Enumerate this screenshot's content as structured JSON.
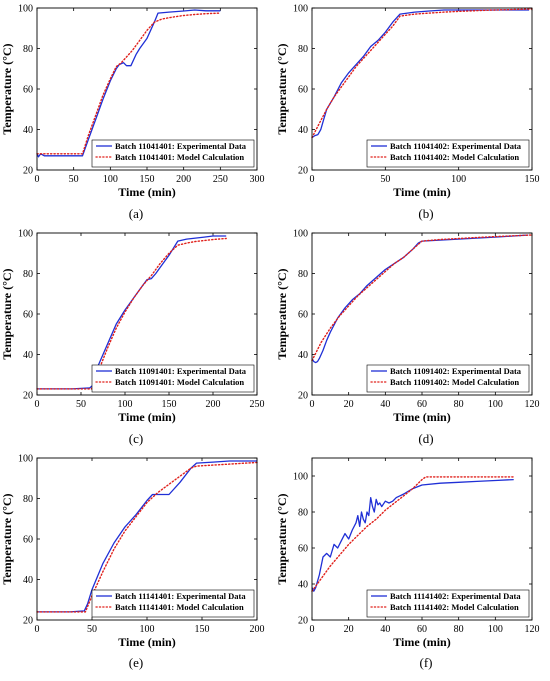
{
  "chart_data": [
    {
      "type": "line",
      "caption": "(a)",
      "xlabel": "Time (min)",
      "ylabel": "Temperature (°C)",
      "xlim": [
        0,
        300
      ],
      "ylim": [
        20,
        100
      ],
      "xticks": [
        "0",
        "50",
        "100",
        "150",
        "200",
        "250",
        "300"
      ],
      "yticks": [
        "20",
        "40",
        "60",
        "80",
        "100"
      ],
      "legend_position": "bottom-right",
      "series": [
        {
          "name": "Batch 11041401: Experimental Data",
          "style": "solid",
          "color": "#1f2fd6",
          "x": [
            0,
            2,
            5,
            10,
            30,
            50,
            62,
            70,
            80,
            90,
            100,
            108,
            112,
            118,
            122,
            128,
            135,
            140,
            150,
            160,
            165,
            180,
            200,
            215,
            230,
            250
          ],
          "y": [
            28,
            26.5,
            28,
            27,
            27,
            27,
            27,
            35,
            45,
            55,
            64,
            70,
            72,
            73,
            71.5,
            71.5,
            77,
            80,
            85,
            93,
            97.5,
            98,
            98.5,
            99,
            98.6,
            98.6
          ]
        },
        {
          "name": "Batch 11041401: Model Calculation",
          "style": "dotted",
          "color": "#e0201b",
          "x": [
            0,
            20,
            40,
            62,
            70,
            80,
            90,
            100,
            108,
            115,
            120,
            130,
            140,
            150,
            160,
            170,
            185,
            200,
            215,
            230,
            250
          ],
          "y": [
            28,
            28,
            28,
            28,
            37,
            47,
            57,
            65,
            71,
            73,
            75,
            79,
            84,
            89,
            93,
            94.5,
            95.5,
            96.3,
            96.8,
            97.2,
            97.5
          ]
        }
      ]
    },
    {
      "type": "line",
      "caption": "(b)",
      "xlabel": "Time (min)",
      "ylabel": "Temperature (°C)",
      "xlim": [
        0,
        150
      ],
      "ylim": [
        20,
        100
      ],
      "xticks": [
        "0",
        "50",
        "100",
        "150"
      ],
      "yticks": [
        "20",
        "40",
        "60",
        "80",
        "100"
      ],
      "legend_position": "bottom-right",
      "series": [
        {
          "name": "Batch 11041402: Experimental Data",
          "style": "solid",
          "color": "#1f2fd6",
          "x": [
            0,
            2,
            4,
            6,
            8,
            10,
            15,
            20,
            25,
            30,
            35,
            40,
            45,
            50,
            55,
            60,
            70,
            80,
            90,
            100,
            110,
            120,
            130,
            140,
            148
          ],
          "y": [
            36,
            37,
            37.5,
            40,
            45,
            50,
            56,
            63,
            68,
            72,
            76,
            81,
            84,
            88,
            93,
            97,
            98,
            98.5,
            99,
            99,
            99,
            99,
            99,
            99,
            99
          ]
        },
        {
          "name": "Batch 11041402: Model Calculation",
          "style": "dotted",
          "color": "#e0201b",
          "x": [
            0,
            5,
            10,
            15,
            20,
            25,
            30,
            35,
            40,
            45,
            50,
            55,
            60,
            70,
            80,
            90,
            100,
            110,
            120,
            130,
            140,
            150
          ],
          "y": [
            36,
            43,
            50,
            56,
            61,
            66,
            71,
            75,
            79,
            83,
            87,
            91,
            96,
            97,
            97.5,
            98,
            98.3,
            98.6,
            98.9,
            99.1,
            99.3,
            99.5
          ]
        }
      ]
    },
    {
      "type": "line",
      "caption": "(c)",
      "xlabel": "Time (min)",
      "ylabel": "Temperature (°C)",
      "xlim": [
        0,
        250
      ],
      "ylim": [
        20,
        100
      ],
      "xticks": [
        "0",
        "50",
        "100",
        "150",
        "200",
        "250"
      ],
      "yticks": [
        "20",
        "40",
        "60",
        "80",
        "100"
      ],
      "legend_position": "bottom-right",
      "series": [
        {
          "name": "Batch 11091401: Experimental Data",
          "style": "solid",
          "color": "#1f2fd6",
          "x": [
            0,
            20,
            40,
            60,
            64,
            70,
            80,
            90,
            100,
            110,
            120,
            125,
            130,
            135,
            140,
            150,
            160,
            170,
            180,
            190,
            200,
            215
          ],
          "y": [
            23,
            23,
            23,
            23.5,
            25,
            35,
            45,
            55,
            62,
            68,
            74,
            77,
            77.5,
            80,
            83,
            89,
            96,
            97,
            97.5,
            98,
            98.5,
            98.5
          ]
        },
        {
          "name": "Batch 11091401: Model Calculation",
          "style": "dotted",
          "color": "#e0201b",
          "x": [
            0,
            20,
            40,
            62,
            70,
            80,
            90,
            100,
            110,
            120,
            130,
            140,
            150,
            160,
            170,
            180,
            190,
            200,
            215
          ],
          "y": [
            23,
            23,
            23,
            23,
            32,
            43,
            53,
            61,
            68,
            74,
            79,
            85,
            90,
            94,
            95,
            95.8,
            96.3,
            96.8,
            97.3
          ]
        }
      ]
    },
    {
      "type": "line",
      "caption": "(d)",
      "xlabel": "Time (min)",
      "ylabel": "Temperature (°C)",
      "xlim": [
        0,
        120
      ],
      "ylim": [
        20,
        100
      ],
      "xticks": [
        "0",
        "20",
        "40",
        "60",
        "80",
        "100",
        "120"
      ],
      "yticks": [
        "20",
        "40",
        "60",
        "80",
        "100"
      ],
      "legend_position": "bottom-right",
      "series": [
        {
          "name": "Batch 11091402: Experimental Data",
          "style": "solid",
          "color": "#1f2fd6",
          "x": [
            0,
            1,
            2,
            3,
            4,
            6,
            8,
            10,
            14,
            18,
            22,
            26,
            30,
            35,
            40,
            45,
            50,
            55,
            58,
            60,
            70,
            80,
            90,
            100,
            110,
            118
          ],
          "y": [
            38,
            36.5,
            36,
            36.5,
            38,
            42,
            47,
            51,
            58,
            63,
            67,
            70,
            74,
            78,
            82,
            85,
            88,
            92,
            95,
            96,
            96.5,
            97,
            97.5,
            98,
            98.5,
            99
          ]
        },
        {
          "name": "Batch 11091402: Model Calculation",
          "style": "dotted",
          "color": "#e0201b",
          "x": [
            0,
            5,
            10,
            15,
            20,
            25,
            30,
            35,
            40,
            45,
            50,
            55,
            60,
            70,
            80,
            90,
            100,
            110,
            120
          ],
          "y": [
            37,
            46,
            53,
            59,
            64,
            69,
            73,
            77,
            81,
            85,
            88,
            92,
            96,
            96.8,
            97.3,
            97.8,
            98.2,
            98.6,
            99
          ]
        }
      ]
    },
    {
      "type": "line",
      "caption": "(e)",
      "xlabel": "Time (min)",
      "ylabel": "Temperature (°C)",
      "xlim": [
        0,
        200
      ],
      "ylim": [
        20,
        100
      ],
      "xticks": [
        "0",
        "50",
        "100",
        "150",
        "200"
      ],
      "yticks": [
        "20",
        "40",
        "60",
        "80",
        "100"
      ],
      "legend_position": "bottom-right",
      "series": [
        {
          "name": "Batch 11141401: Experimental Data",
          "style": "solid",
          "color": "#1f2fd6",
          "x": [
            0,
            15,
            30,
            43,
            46,
            50,
            60,
            70,
            80,
            90,
            100,
            105,
            110,
            115,
            120,
            130,
            140,
            145,
            160,
            175,
            190,
            200
          ],
          "y": [
            24,
            24,
            24,
            24.5,
            28,
            35,
            48,
            58,
            66,
            72,
            79,
            82,
            82,
            82,
            82,
            88,
            95,
            97.5,
            98,
            98.5,
            98.5,
            98.5
          ]
        },
        {
          "name": "Batch 11141401: Model Calculation",
          "style": "dotted",
          "color": "#e0201b",
          "x": [
            0,
            15,
            30,
            44,
            50,
            60,
            70,
            80,
            90,
            100,
            110,
            120,
            130,
            140,
            145,
            160,
            175,
            190,
            200
          ],
          "y": [
            24,
            24,
            24,
            24,
            32,
            44,
            55,
            64,
            71,
            78,
            83,
            87,
            91,
            95,
            96,
            96.5,
            97,
            97.5,
            97.8
          ]
        }
      ]
    },
    {
      "type": "line",
      "caption": "(f)",
      "xlabel": "Time (min)",
      "ylabel": "Temperature (°C)",
      "xlim": [
        0,
        120
      ],
      "ylim": [
        20,
        110
      ],
      "xticks": [
        "0",
        "20",
        "40",
        "60",
        "80",
        "100",
        "120"
      ],
      "yticks": [
        "20",
        "40",
        "60",
        "80",
        "100"
      ],
      "legend_position": "bottom-right",
      "series": [
        {
          "name": "Batch 11141402: Experimental Data",
          "style": "solid",
          "color": "#1f2fd6",
          "x": [
            0,
            1,
            2,
            4,
            6,
            8,
            10,
            12,
            14,
            16,
            18,
            20,
            22,
            24,
            25,
            26,
            27,
            28,
            29,
            30,
            31,
            32,
            33,
            34,
            35,
            36,
            37,
            38,
            40,
            42,
            44,
            46,
            48,
            50,
            55,
            60,
            70,
            80,
            90,
            100,
            110
          ],
          "y": [
            38,
            36,
            38,
            45,
            55,
            57,
            55,
            62,
            60,
            64,
            68,
            65,
            70,
            74,
            78,
            72,
            80,
            76,
            74,
            80,
            78,
            88,
            83,
            80,
            87,
            84,
            85,
            83,
            86,
            85,
            86,
            88,
            89,
            90,
            93,
            95,
            96,
            96.5,
            97,
            97.5,
            98
          ]
        },
        {
          "name": "Batch 11141402: Model Calculation",
          "style": "dotted",
          "color": "#e0201b",
          "x": [
            0,
            5,
            10,
            15,
            20,
            25,
            30,
            35,
            40,
            45,
            50,
            55,
            60,
            62,
            70,
            80,
            90,
            100,
            110
          ],
          "y": [
            36,
            43,
            50,
            56,
            62,
            67,
            72,
            76,
            81,
            85,
            89,
            93,
            98,
            99.5,
            99.5,
            99.5,
            99.5,
            99.5,
            99.5
          ]
        }
      ]
    }
  ]
}
